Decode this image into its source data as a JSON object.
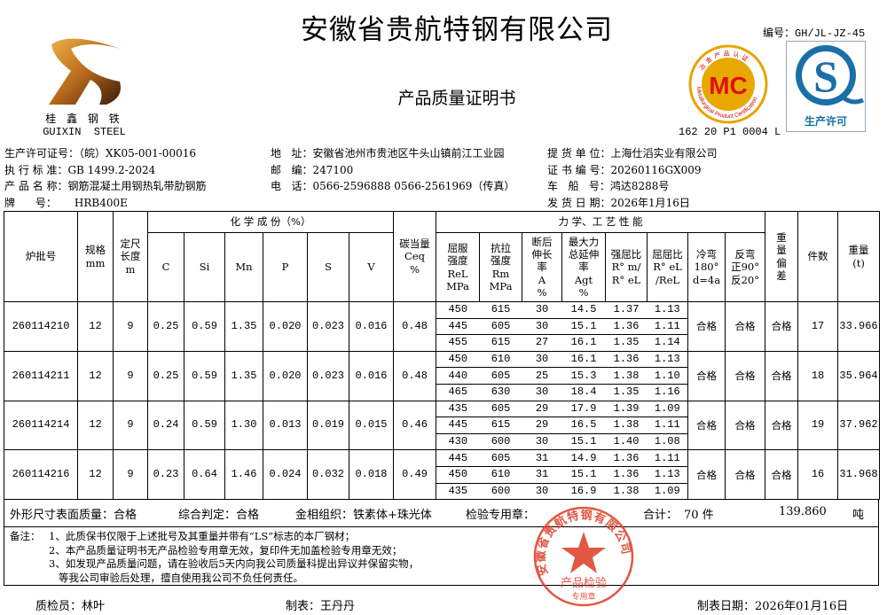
{
  "header": {
    "title": "安徽省贵航特钢有限公司",
    "subtitle": "产品质量证明书",
    "doc_no": "编号：GH/JL-JZ-45",
    "logo_cn": "桂 鑫 钢 铁",
    "logo_en": "GUIXIN  STEEL",
    "mc_logo": {
      "center": "MC",
      "ring_top": "冶金产品认证",
      "ring_bottom": "Metallurgical Product Certification"
    },
    "mc_code": "162 20 P1 0004 L",
    "qs_logo": {
      "letter": "S",
      "caption": "生产许可"
    }
  },
  "info": {
    "left": [
      {
        "label": "生产许可证号：",
        "value": "（皖）XK05-001-00016"
      },
      {
        "label": "执 行 标 准：",
        "value": "GB 1499.2-2024"
      },
      {
        "label": "产 品 名 称：",
        "value": "钢筋混凝土用钢热轧带肋钢筋"
      },
      {
        "label": "牌      号：",
        "value": "HRB400E"
      }
    ],
    "middle": [
      {
        "label": "地   址：",
        "value": "安徽省池州市贵池区牛头山镇前江工业园"
      },
      {
        "label": "邮   编：",
        "value": "247100"
      },
      {
        "label": "电   话：",
        "value": "0566-2596888  0566-2561969（传真）"
      }
    ],
    "right": [
      {
        "label": "提 货 单 位：",
        "value": "上海仕滔实业有限公司"
      },
      {
        "label": "证 书 编 号：",
        "value": "20260116GX009"
      },
      {
        "label": "车   船   号：",
        "value": "鸿达8288号"
      },
      {
        "label": "发 货 日 期：",
        "value": "2026年1月16日"
      }
    ]
  },
  "table": {
    "headers": {
      "batch": "炉批号",
      "spec": "规格\nmm",
      "length": "定尺\n长度\nm",
      "chem_group": "化 学 成 份（%）",
      "chem": [
        "C",
        "Si",
        "Mn",
        "P",
        "S",
        "V"
      ],
      "ceq": "碳当量\nCeq\n%",
      "mech_group": "力 学、工 艺 性 能",
      "mech": [
        "屈服\n强度\nReL\nMPa",
        "抗拉\n强度\nRm\nMPa",
        "断后\n伸长\n率\nA\n%",
        "最大力\n总延伸\n率\nAgt\n%",
        "强屈比\nR° m/\nR° eL",
        "屈屈比\nR° eL\n/ReL",
        "冷弯\n180°\nd=4a",
        "反弯\n正90°\n反20°"
      ],
      "deviation": "重\n量\n偏\n差",
      "pieces": "件数",
      "weight": "重量\n(t)"
    },
    "rows": [
      {
        "batch": "260114210",
        "spec": "12",
        "length": "9",
        "chem": [
          "0.25",
          "0.59",
          "1.35",
          "0.020",
          "0.023",
          "0.016"
        ],
        "ceq": "0.48",
        "mech": [
          [
            "450",
            "615",
            "30",
            "14.5",
            "1.37",
            "1.13"
          ],
          [
            "445",
            "605",
            "30",
            "15.1",
            "1.36",
            "1.11"
          ],
          [
            "455",
            "615",
            "27",
            "16.1",
            "1.35",
            "1.14"
          ]
        ],
        "cold_bend": "合格",
        "reverse_bend": "合格",
        "deviation": "合格",
        "pieces": "17",
        "weight": "33.966"
      },
      {
        "batch": "260114211",
        "spec": "12",
        "length": "9",
        "chem": [
          "0.25",
          "0.59",
          "1.35",
          "0.020",
          "0.023",
          "0.016"
        ],
        "ceq": "0.48",
        "mech": [
          [
            "450",
            "610",
            "30",
            "16.1",
            "1.36",
            "1.13"
          ],
          [
            "440",
            "605",
            "25",
            "15.3",
            "1.38",
            "1.10"
          ],
          [
            "465",
            "630",
            "30",
            "18.4",
            "1.35",
            "1.16"
          ]
        ],
        "cold_bend": "合格",
        "reverse_bend": "合格",
        "deviation": "合格",
        "pieces": "18",
        "weight": "35.964"
      },
      {
        "batch": "260114214",
        "spec": "12",
        "length": "9",
        "chem": [
          "0.24",
          "0.59",
          "1.30",
          "0.013",
          "0.019",
          "0.015"
        ],
        "ceq": "0.46",
        "mech": [
          [
            "435",
            "605",
            "29",
            "17.9",
            "1.39",
            "1.09"
          ],
          [
            "445",
            "615",
            "29",
            "16.5",
            "1.38",
            "1.11"
          ],
          [
            "430",
            "600",
            "30",
            "15.1",
            "1.40",
            "1.08"
          ]
        ],
        "cold_bend": "合格",
        "reverse_bend": "合格",
        "deviation": "合格",
        "pieces": "19",
        "weight": "37.962"
      },
      {
        "batch": "260114216",
        "spec": "12",
        "length": "9",
        "chem": [
          "0.23",
          "0.64",
          "1.46",
          "0.024",
          "0.032",
          "0.018"
        ],
        "ceq": "0.49",
        "mech": [
          [
            "445",
            "605",
            "31",
            "14.9",
            "1.36",
            "1.11"
          ],
          [
            "450",
            "610",
            "31",
            "15.1",
            "1.36",
            "1.13"
          ],
          [
            "435",
            "600",
            "30",
            "16.9",
            "1.38",
            "1.09"
          ]
        ],
        "cold_bend": "合格",
        "reverse_bend": "合格",
        "deviation": "合格",
        "pieces": "16",
        "weight": "31.968"
      }
    ]
  },
  "summary": {
    "surface": "外形尺寸表面质量：合格",
    "judgement": "综合判定：合格",
    "structure": "金相组织：铁素体+珠光体",
    "stamp_label": "检验专用章：",
    "total_label": "合计：",
    "total_pieces": "70 件",
    "total_weight": "139.860",
    "unit": "吨"
  },
  "notes": {
    "label": "备注：",
    "lines": [
      "1、此质保书仅限于上述批号及其重量并带有“LS”标志的本厂钢材；",
      "2、本产品质量证明书无产品检验专用章无效，复印件无加盖检验专用章无效；",
      "3、如发现产品质量问题，请在验收后5天内向我公司质量科提出异议并保留实物，",
      "   等我公司审验后处理，擅自使用我公司不负任何责任。"
    ]
  },
  "stamp": {
    "ring": "安徽省贵航特钢有限公司",
    "center": "产品检验",
    "bottom": "专用章",
    "color": "#e0402a"
  },
  "footer": {
    "inspector": "质检员：林叶",
    "preparer": "制表：王丹丹",
    "date": "制表日期：2026年01月16日"
  }
}
